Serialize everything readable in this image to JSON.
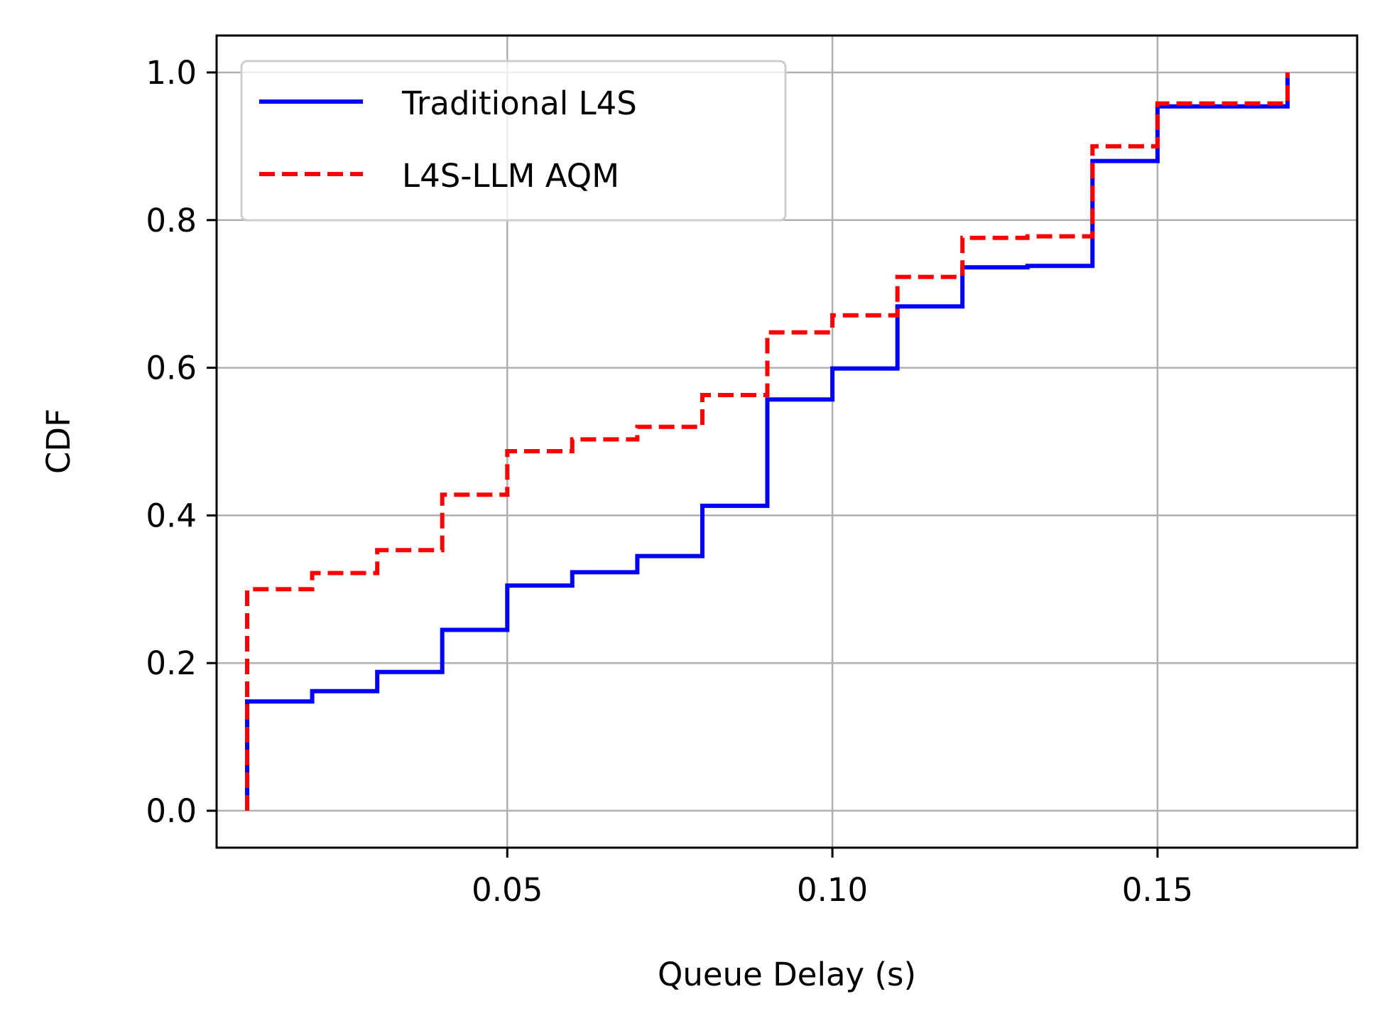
{
  "chart_data": {
    "type": "line",
    "step": "post",
    "xlabel": "Queue Delay (s)",
    "ylabel": "CDF",
    "xlim": [
      0.0053,
      0.1807
    ],
    "ylim": [
      -0.05,
      1.05
    ],
    "xticks": [
      0.05,
      0.1,
      0.15
    ],
    "xtick_labels": [
      "0.05",
      "0.10",
      "0.15"
    ],
    "yticks": [
      0.0,
      0.2,
      0.4,
      0.6,
      0.8,
      1.0
    ],
    "ytick_labels": [
      "0.0",
      "0.2",
      "0.4",
      "0.6",
      "0.8",
      "1.0"
    ],
    "grid": true,
    "legend_position": "upper-left",
    "series": [
      {
        "name": "Traditional L4S",
        "color": "#0000ff",
        "linestyle": "solid",
        "x": [
          0.01,
          0.01,
          0.02,
          0.03,
          0.04,
          0.05,
          0.06,
          0.07,
          0.08,
          0.09,
          0.1,
          0.11,
          0.12,
          0.13,
          0.14,
          0.15,
          0.17,
          0.17
        ],
        "y": [
          0.0,
          0.148,
          0.162,
          0.188,
          0.245,
          0.305,
          0.323,
          0.345,
          0.413,
          0.557,
          0.599,
          0.683,
          0.736,
          0.738,
          0.88,
          0.954,
          0.954,
          1.0
        ]
      },
      {
        "name": "L4S-LLM AQM",
        "color": "#ff0000",
        "linestyle": "dashed",
        "x": [
          0.01,
          0.01,
          0.02,
          0.03,
          0.04,
          0.05,
          0.06,
          0.07,
          0.08,
          0.09,
          0.1,
          0.11,
          0.12,
          0.13,
          0.14,
          0.15,
          0.17,
          0.17
        ],
        "y": [
          0.0,
          0.3,
          0.322,
          0.353,
          0.428,
          0.487,
          0.503,
          0.52,
          0.563,
          0.648,
          0.671,
          0.723,
          0.776,
          0.778,
          0.9,
          0.958,
          0.958,
          1.0
        ]
      }
    ]
  }
}
